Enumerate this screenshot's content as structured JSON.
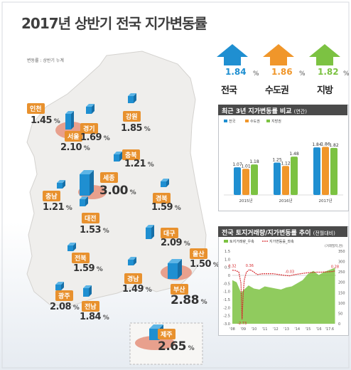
{
  "title": "2017년 상반기 전국 지가변동률",
  "note": "변동률 : 상반기 누계",
  "headline": [
    {
      "label": "전국",
      "value": "1.84",
      "unit": "%",
      "color": "#1f8fd1"
    },
    {
      "label": "수도권",
      "value": "1.86",
      "unit": "%",
      "color": "#f0962a"
    },
    {
      "label": "지방",
      "value": "1.82",
      "unit": "%",
      "color": "#7cc242"
    }
  ],
  "regions": [
    {
      "name": "인천",
      "value": "1.45",
      "unit": "%"
    },
    {
      "name": "서울",
      "value": "2.10",
      "unit": "%"
    },
    {
      "name": "경기",
      "value": "1.69",
      "unit": "%"
    },
    {
      "name": "강원",
      "value": "1.85",
      "unit": "%"
    },
    {
      "name": "충북",
      "value": "1.21",
      "unit": "%"
    },
    {
      "name": "세종",
      "value": "3.00",
      "unit": "%"
    },
    {
      "name": "충남",
      "value": "1.21",
      "unit": "%"
    },
    {
      "name": "대전",
      "value": "1.53",
      "unit": "%"
    },
    {
      "name": "경북",
      "value": "1.59",
      "unit": "%"
    },
    {
      "name": "대구",
      "value": "2.09",
      "unit": "%"
    },
    {
      "name": "전북",
      "value": "1.59",
      "unit": "%"
    },
    {
      "name": "울산",
      "value": "1.50",
      "unit": "%"
    },
    {
      "name": "경남",
      "value": "1.49",
      "unit": "%"
    },
    {
      "name": "부산",
      "value": "2.88",
      "unit": "%"
    },
    {
      "name": "광주",
      "value": "2.08",
      "unit": "%"
    },
    {
      "name": "전남",
      "value": "1.84",
      "unit": "%"
    },
    {
      "name": "제주",
      "value": "2.65",
      "unit": "%"
    }
  ],
  "colors": {
    "blue": "#1f8fd1",
    "orange": "#f0962a",
    "green": "#7cc242",
    "red": "#d6262b",
    "panel_header": "#4a4a4a",
    "map": "#efeeec"
  },
  "chart_data": [
    {
      "type": "bar",
      "title": "최근 3년 지가변동률 비교",
      "title_note": "(연간)",
      "categories": [
        "2015년",
        "2016년",
        "2017년"
      ],
      "series": [
        {
          "name": "전국",
          "values": [
            1.07,
            1.25,
            1.84
          ]
        },
        {
          "name": "수도권",
          "values": [
            1.01,
            1.12,
            1.86
          ]
        },
        {
          "name": "지방권",
          "values": [
            1.18,
            1.48,
            1.82
          ]
        }
      ],
      "value_labels": [
        [
          "1.07",
          "1.01",
          "1.18"
        ],
        [
          "1.25",
          "1.12",
          "1.48"
        ],
        [
          "1.84",
          "1.86",
          "1.82"
        ]
      ],
      "ylim": [
        0,
        2.2
      ]
    },
    {
      "type": "line",
      "title": "전국 토지거래량/지가변동률 추이",
      "title_note": "(전월대비)",
      "legend": [
        "토지거래량_우축",
        "지가변동률_좌축"
      ],
      "x_ticks": [
        "'08",
        "'09",
        "'10",
        "'11",
        "'12",
        "'13",
        "'14",
        "'15",
        "'16",
        "'17.6"
      ],
      "y_left_ticks": [
        "1.5",
        "1.0",
        "0.5",
        "0",
        "-0.5",
        "-1.0",
        "-1.5",
        "-2.0",
        "-2.5",
        "-3.0"
      ],
      "y_left_lim": [
        -3.0,
        1.5
      ],
      "y_right_ticks": [
        "350",
        "300",
        "250",
        "200",
        "150",
        "100",
        "50",
        "0"
      ],
      "y_right_label": "(거래필지,천)",
      "y_right_lim": [
        0,
        350
      ],
      "annotations": [
        "0.32",
        "0.36",
        "-2.73",
        "-0.03",
        "0.28"
      ],
      "series": [
        {
          "name": "지가변동률_좌축",
          "x": [
            2008.0,
            2008.3,
            2008.6,
            2008.8,
            2008.9,
            2009.0,
            2009.1,
            2009.3,
            2009.6,
            2009.9,
            2010.3,
            2010.8,
            2011.3,
            2011.8,
            2012.3,
            2012.8,
            2013.3,
            2013.8,
            2014.3,
            2014.8,
            2015.3,
            2015.8,
            2016.3,
            2016.8,
            2017.3,
            2017.5
          ],
          "values": [
            0.32,
            0.3,
            0.2,
            -0.5,
            -2.73,
            -1.2,
            -0.3,
            0.2,
            0.36,
            0.25,
            0.05,
            0.1,
            0.1,
            0.1,
            0.05,
            0.0,
            -0.03,
            0.05,
            0.1,
            0.15,
            0.18,
            0.2,
            0.2,
            0.22,
            0.24,
            0.28
          ]
        },
        {
          "name": "토지거래량_우축",
          "x": [
            2008.0,
            2008.4,
            2008.8,
            2009.1,
            2009.5,
            2010.0,
            2010.5,
            2011.0,
            2011.5,
            2012.0,
            2012.5,
            2013.0,
            2013.5,
            2014.0,
            2014.5,
            2015.0,
            2015.5,
            2016.0,
            2016.5,
            2017.0,
            2017.5
          ],
          "values": [
            210,
            200,
            150,
            165,
            185,
            170,
            165,
            180,
            175,
            170,
            165,
            175,
            180,
            195,
            210,
            240,
            255,
            235,
            250,
            260,
            270
          ]
        }
      ]
    }
  ]
}
